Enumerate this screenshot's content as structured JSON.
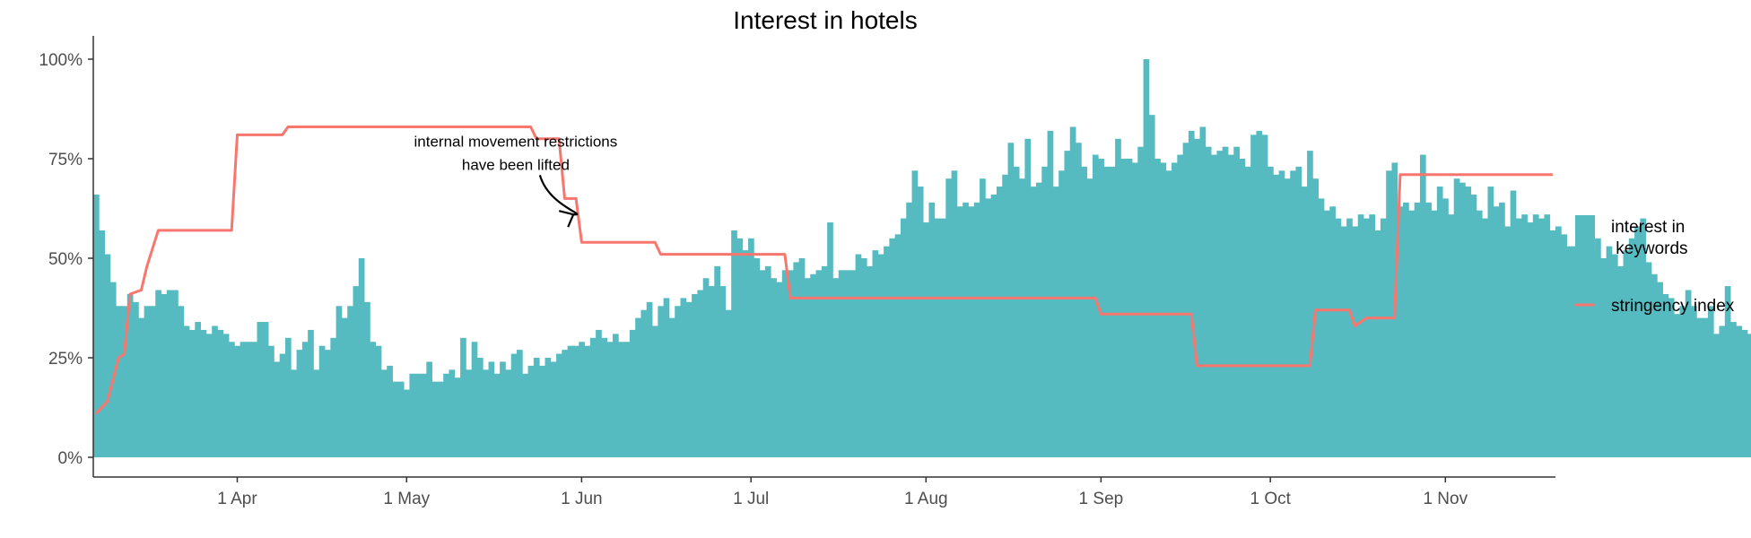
{
  "chart_data": {
    "type": "bar",
    "title": "Interest in hotels",
    "xlabel": "",
    "ylabel": "",
    "x_range": [
      "2020-03-07",
      "2020-11-20"
    ],
    "ylim": [
      0,
      1
    ],
    "y_ticks": [
      0,
      0.25,
      0.5,
      0.75,
      1.0
    ],
    "y_tick_labels": [
      "0%",
      "25%",
      "50%",
      "75%",
      "100%"
    ],
    "x_ticks": [
      "2020-04-01",
      "2020-05-01",
      "2020-06-01",
      "2020-07-01",
      "2020-08-01",
      "2020-09-01",
      "2020-10-01",
      "2020-11-01"
    ],
    "x_tick_labels": [
      "1 Apr",
      "1 May",
      "1 Jun",
      "1 Jul",
      "1 Aug",
      "1 Sep",
      "1 Oct",
      "1 Nov"
    ],
    "grid": false,
    "legend_position": "right",
    "colors": {
      "bars": "#56BBC1",
      "line": "#F8766D"
    },
    "legend": [
      {
        "label_lines": [
          "interest in",
          " keywords"
        ],
        "kind": "bar",
        "color": "#56BBC1"
      },
      {
        "label_lines": [
          "stringency index"
        ],
        "kind": "line",
        "color": "#F8766D"
      }
    ],
    "annotation": {
      "lines": [
        "internal movement restrictions",
        "have been lifted"
      ],
      "anchor_date": "2020-05-24",
      "anchor_value": 0.72,
      "arrow_to_date": "2020-06-01",
      "arrow_to_value": 0.61
    },
    "series": [
      {
        "name": "interest in keywords",
        "kind": "bar",
        "start_date": "2020-03-07",
        "values": [
          0.66,
          0.57,
          0.51,
          0.44,
          0.38,
          0.38,
          0.41,
          0.39,
          0.35,
          0.38,
          0.38,
          0.42,
          0.41,
          0.42,
          0.42,
          0.38,
          0.33,
          0.32,
          0.34,
          0.32,
          0.31,
          0.33,
          0.32,
          0.31,
          0.29,
          0.28,
          0.29,
          0.29,
          0.29,
          0.34,
          0.34,
          0.28,
          0.24,
          0.26,
          0.3,
          0.22,
          0.27,
          0.29,
          0.32,
          0.22,
          0.28,
          0.27,
          0.3,
          0.38,
          0.35,
          0.38,
          0.43,
          0.5,
          0.39,
          0.29,
          0.28,
          0.22,
          0.23,
          0.19,
          0.19,
          0.17,
          0.21,
          0.21,
          0.21,
          0.24,
          0.19,
          0.19,
          0.21,
          0.22,
          0.2,
          0.3,
          0.22,
          0.29,
          0.25,
          0.22,
          0.24,
          0.21,
          0.24,
          0.22,
          0.26,
          0.27,
          0.21,
          0.23,
          0.25,
          0.23,
          0.25,
          0.24,
          0.26,
          0.27,
          0.28,
          0.28,
          0.29,
          0.28,
          0.3,
          0.32,
          0.3,
          0.29,
          0.31,
          0.29,
          0.29,
          0.32,
          0.35,
          0.37,
          0.39,
          0.33,
          0.38,
          0.4,
          0.35,
          0.38,
          0.4,
          0.39,
          0.41,
          0.42,
          0.45,
          0.43,
          0.48,
          0.43,
          0.37,
          0.57,
          0.55,
          0.52,
          0.55,
          0.5,
          0.47,
          0.48,
          0.45,
          0.44,
          0.47,
          0.47,
          0.49,
          0.5,
          0.45,
          0.46,
          0.47,
          0.48,
          0.59,
          0.45,
          0.47,
          0.47,
          0.47,
          0.51,
          0.5,
          0.48,
          0.52,
          0.51,
          0.53,
          0.55,
          0.56,
          0.6,
          0.64,
          0.72,
          0.68,
          0.59,
          0.64,
          0.6,
          0.6,
          0.7,
          0.72,
          0.63,
          0.64,
          0.63,
          0.64,
          0.7,
          0.65,
          0.66,
          0.68,
          0.71,
          0.79,
          0.73,
          0.7,
          0.8,
          0.68,
          0.69,
          0.73,
          0.82,
          0.68,
          0.72,
          0.77,
          0.83,
          0.79,
          0.73,
          0.7,
          0.76,
          0.75,
          0.73,
          0.73,
          0.8,
          0.75,
          0.75,
          0.74,
          0.78,
          1.0,
          0.86,
          0.75,
          0.74,
          0.72,
          0.74,
          0.76,
          0.79,
          0.82,
          0.8,
          0.83,
          0.78,
          0.76,
          0.77,
          0.78,
          0.76,
          0.78,
          0.75,
          0.73,
          0.81,
          0.82,
          0.81,
          0.73,
          0.71,
          0.72,
          0.7,
          0.72,
          0.73,
          0.68,
          0.77,
          0.7,
          0.65,
          0.62,
          0.63,
          0.6,
          0.58,
          0.6,
          0.58,
          0.61,
          0.6,
          0.61,
          0.57,
          0.6,
          0.72,
          0.74,
          0.63,
          0.64,
          0.62,
          0.64,
          0.76,
          0.64,
          0.62,
          0.68,
          0.65,
          0.61,
          0.7,
          0.69,
          0.68,
          0.66,
          0.62,
          0.6,
          0.68,
          0.63,
          0.64,
          0.58,
          0.67,
          0.6,
          0.61,
          0.59,
          0.61,
          0.6,
          0.61,
          0.57,
          0.58,
          0.56,
          0.53,
          0.53,
          0.53,
          0.53,
          0.52,
          0.55,
          0.5,
          0.53,
          0.51,
          0.48,
          0.52,
          0.55,
          0.58,
          0.6,
          0.49,
          0.46,
          0.44,
          0.41,
          0.4,
          0.36,
          0.38,
          0.42,
          0.38,
          0.35,
          0.35,
          0.38,
          0.31,
          0.33,
          0.43,
          0.34,
          0.33,
          0.32,
          0.31,
          0.29,
          0.3,
          0.31,
          0.3,
          0.29,
          0.32,
          0.32,
          0.32,
          0.29,
          0.33,
          0.3,
          0.29,
          0.33,
          0.3,
          0.34,
          0.36,
          0.3,
          0.3,
          0.29,
          0.28,
          0.27,
          0.27,
          0.3,
          0.33,
          0.31,
          0.3,
          0.29,
          0.28,
          0.28,
          0.27,
          0.3,
          0.3,
          0.3,
          0.36,
          0.4,
          0.48
        ]
      },
      {
        "name": "stringency index",
        "kind": "step",
        "points": [
          [
            "2020-03-07",
            0.11
          ],
          [
            "2020-03-09",
            0.14
          ],
          [
            "2020-03-11",
            0.25
          ],
          [
            "2020-03-12",
            0.26
          ],
          [
            "2020-03-13",
            0.41
          ],
          [
            "2020-03-15",
            0.42
          ],
          [
            "2020-03-16",
            0.48
          ],
          [
            "2020-03-18",
            0.57
          ],
          [
            "2020-03-31",
            0.57
          ],
          [
            "2020-04-01",
            0.81
          ],
          [
            "2020-04-09",
            0.81
          ],
          [
            "2020-04-10",
            0.83
          ],
          [
            "2020-05-23",
            0.83
          ],
          [
            "2020-05-24",
            0.8
          ],
          [
            "2020-05-28",
            0.8
          ],
          [
            "2020-05-29",
            0.65
          ],
          [
            "2020-05-31",
            0.65
          ],
          [
            "2020-06-01",
            0.54
          ],
          [
            "2020-06-14",
            0.54
          ],
          [
            "2020-06-15",
            0.51
          ],
          [
            "2020-07-07",
            0.51
          ],
          [
            "2020-07-08",
            0.4
          ],
          [
            "2020-08-31",
            0.4
          ],
          [
            "2020-09-01",
            0.36
          ],
          [
            "2020-09-17",
            0.36
          ],
          [
            "2020-09-18",
            0.23
          ],
          [
            "2020-10-08",
            0.23
          ],
          [
            "2020-10-09",
            0.37
          ],
          [
            "2020-10-15",
            0.37
          ],
          [
            "2020-10-16",
            0.33
          ],
          [
            "2020-10-18",
            0.35
          ],
          [
            "2020-10-23",
            0.35
          ],
          [
            "2020-10-24",
            0.71
          ],
          [
            "2020-11-20",
            0.71
          ]
        ]
      }
    ]
  }
}
